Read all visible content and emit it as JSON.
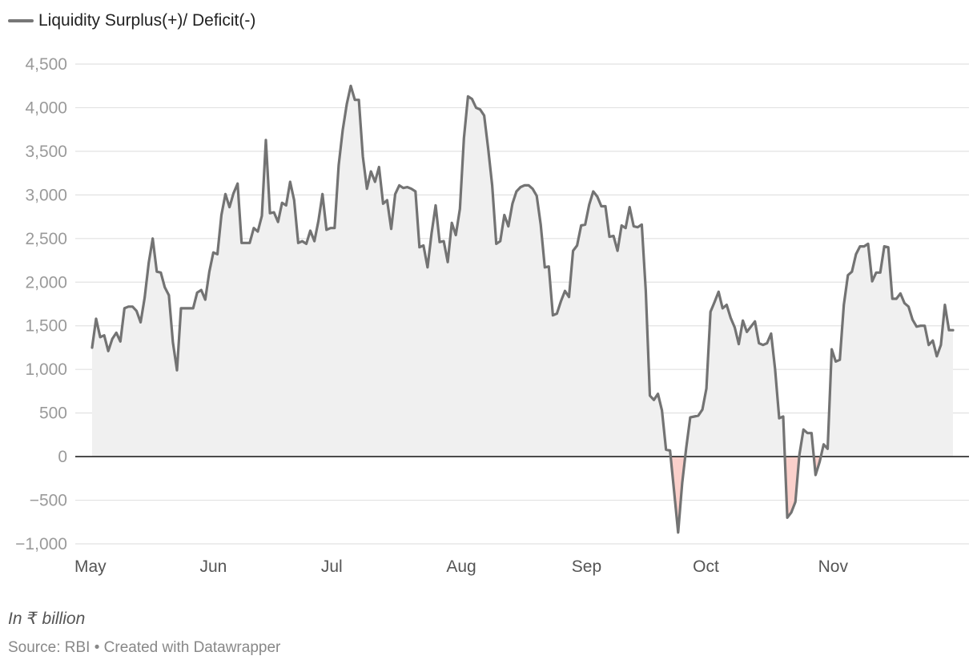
{
  "legend": {
    "label": "Liquidity Surplus(+)/ Deficit(-)",
    "line_color": "#777777"
  },
  "note": "In ₹ billion",
  "source": "Source: RBI • Created with Datawrapper",
  "colors": {
    "surplus_fill": "#f0f0f0",
    "deficit_fill": "#fbd0cb",
    "line": "#737373",
    "zero_line": "#222222",
    "grid": "#e2e2e2"
  },
  "chart_data": {
    "type": "area",
    "title": "",
    "xlabel": "",
    "ylabel": "",
    "ylim": [
      -1000,
      4500
    ],
    "yticks": [
      -1000,
      -500,
      0,
      500,
      1000,
      1500,
      2000,
      2500,
      3000,
      3500,
      4000,
      4500
    ],
    "ytick_labels": [
      "−1,000",
      "−500",
      "0",
      "500",
      "1,000",
      "1,500",
      "2,000",
      "2,500",
      "3,000",
      "3,500",
      "4,000",
      "4,500"
    ],
    "xticks": [
      {
        "label": "May",
        "day": 0
      },
      {
        "label": "Jun",
        "day": 31
      },
      {
        "label": "Jul",
        "day": 61
      },
      {
        "label": "Aug",
        "day": 92
      },
      {
        "label": "Sep",
        "day": 123
      },
      {
        "label": "Oct",
        "day": 153
      },
      {
        "label": "Nov",
        "day": 184
      }
    ],
    "grid": true,
    "series": [
      {
        "name": "Liquidity Surplus(+)/ Deficit(-)",
        "points": [
          [
            0,
            1250
          ],
          [
            1,
            1580
          ],
          [
            2,
            1370
          ],
          [
            3,
            1390
          ],
          [
            4,
            1210
          ],
          [
            5,
            1350
          ],
          [
            6,
            1420
          ],
          [
            7,
            1320
          ],
          [
            8,
            1700
          ],
          [
            9,
            1720
          ],
          [
            10,
            1720
          ],
          [
            11,
            1670
          ],
          [
            12,
            1540
          ],
          [
            13,
            1820
          ],
          [
            14,
            2220
          ],
          [
            15,
            2500
          ],
          [
            16,
            2120
          ],
          [
            17,
            2110
          ],
          [
            18,
            1940
          ],
          [
            19,
            1850
          ],
          [
            20,
            1310
          ],
          [
            21,
            990
          ],
          [
            22,
            1700
          ],
          [
            23,
            1700
          ],
          [
            24,
            1700
          ],
          [
            25,
            1700
          ],
          [
            26,
            1880
          ],
          [
            27,
            1910
          ],
          [
            28,
            1800
          ],
          [
            29,
            2120
          ],
          [
            30,
            2340
          ],
          [
            31,
            2320
          ],
          [
            32,
            2770
          ],
          [
            33,
            3010
          ],
          [
            34,
            2860
          ],
          [
            35,
            3020
          ],
          [
            36,
            3130
          ],
          [
            37,
            2450
          ],
          [
            38,
            2450
          ],
          [
            39,
            2450
          ],
          [
            40,
            2620
          ],
          [
            41,
            2580
          ],
          [
            42,
            2760
          ],
          [
            43,
            3630
          ],
          [
            44,
            2790
          ],
          [
            45,
            2800
          ],
          [
            46,
            2690
          ],
          [
            47,
            2910
          ],
          [
            48,
            2880
          ],
          [
            49,
            3150
          ],
          [
            50,
            2940
          ],
          [
            51,
            2450
          ],
          [
            52,
            2470
          ],
          [
            53,
            2440
          ],
          [
            54,
            2590
          ],
          [
            55,
            2470
          ],
          [
            56,
            2700
          ],
          [
            57,
            3010
          ],
          [
            58,
            2600
          ],
          [
            59,
            2620
          ],
          [
            60,
            2620
          ],
          [
            61,
            3340
          ],
          [
            62,
            3740
          ],
          [
            63,
            4040
          ],
          [
            64,
            4250
          ],
          [
            65,
            4090
          ],
          [
            66,
            4090
          ],
          [
            67,
            3440
          ],
          [
            68,
            3070
          ],
          [
            69,
            3270
          ],
          [
            70,
            3150
          ],
          [
            71,
            3320
          ],
          [
            72,
            2900
          ],
          [
            73,
            2940
          ],
          [
            74,
            2610
          ],
          [
            75,
            3010
          ],
          [
            76,
            3110
          ],
          [
            77,
            3080
          ],
          [
            78,
            3090
          ],
          [
            79,
            3070
          ],
          [
            80,
            3040
          ],
          [
            81,
            2400
          ],
          [
            82,
            2420
          ],
          [
            83,
            2170
          ],
          [
            84,
            2560
          ],
          [
            85,
            2880
          ],
          [
            86,
            2460
          ],
          [
            87,
            2470
          ],
          [
            88,
            2230
          ],
          [
            89,
            2680
          ],
          [
            90,
            2540
          ],
          [
            91,
            2840
          ],
          [
            92,
            3650
          ],
          [
            93,
            4130
          ],
          [
            94,
            4100
          ],
          [
            95,
            4000
          ],
          [
            96,
            3980
          ],
          [
            97,
            3910
          ],
          [
            98,
            3530
          ],
          [
            99,
            3110
          ],
          [
            100,
            2440
          ],
          [
            101,
            2470
          ],
          [
            102,
            2770
          ],
          [
            103,
            2640
          ],
          [
            104,
            2900
          ],
          [
            105,
            3040
          ],
          [
            106,
            3090
          ],
          [
            107,
            3110
          ],
          [
            108,
            3110
          ],
          [
            109,
            3070
          ],
          [
            110,
            2990
          ],
          [
            111,
            2660
          ],
          [
            112,
            2170
          ],
          [
            113,
            2180
          ],
          [
            114,
            1620
          ],
          [
            115,
            1640
          ],
          [
            116,
            1780
          ],
          [
            117,
            1900
          ],
          [
            118,
            1830
          ],
          [
            119,
            2360
          ],
          [
            120,
            2420
          ],
          [
            121,
            2650
          ],
          [
            122,
            2660
          ],
          [
            123,
            2890
          ],
          [
            124,
            3040
          ],
          [
            125,
            2980
          ],
          [
            126,
            2870
          ],
          [
            127,
            2870
          ],
          [
            128,
            2520
          ],
          [
            129,
            2530
          ],
          [
            130,
            2360
          ],
          [
            131,
            2650
          ],
          [
            132,
            2620
          ],
          [
            133,
            2860
          ],
          [
            134,
            2640
          ],
          [
            135,
            2630
          ],
          [
            136,
            2660
          ],
          [
            137,
            1900
          ],
          [
            138,
            700
          ],
          [
            139,
            650
          ],
          [
            140,
            720
          ],
          [
            141,
            530
          ],
          [
            142,
            80
          ],
          [
            143,
            70
          ],
          [
            144,
            -400
          ],
          [
            145,
            -870
          ],
          [
            146,
            -300
          ],
          [
            147,
            100
          ],
          [
            148,
            450
          ],
          [
            149,
            460
          ],
          [
            150,
            470
          ],
          [
            151,
            540
          ],
          [
            152,
            780
          ],
          [
            153,
            1660
          ],
          [
            154,
            1770
          ],
          [
            155,
            1890
          ],
          [
            156,
            1700
          ],
          [
            157,
            1740
          ],
          [
            158,
            1590
          ],
          [
            159,
            1480
          ],
          [
            160,
            1290
          ],
          [
            161,
            1560
          ],
          [
            162,
            1430
          ],
          [
            163,
            1490
          ],
          [
            164,
            1550
          ],
          [
            165,
            1300
          ],
          [
            166,
            1280
          ],
          [
            167,
            1300
          ],
          [
            168,
            1410
          ],
          [
            169,
            1000
          ],
          [
            170,
            440
          ],
          [
            171,
            460
          ],
          [
            172,
            -700
          ],
          [
            173,
            -640
          ],
          [
            174,
            -520
          ],
          [
            175,
            20
          ],
          [
            176,
            310
          ],
          [
            177,
            270
          ],
          [
            178,
            270
          ],
          [
            179,
            -210
          ],
          [
            180,
            -60
          ],
          [
            181,
            140
          ],
          [
            182,
            90
          ],
          [
            183,
            1230
          ],
          [
            184,
            1090
          ],
          [
            185,
            1110
          ],
          [
            186,
            1740
          ],
          [
            187,
            2080
          ],
          [
            188,
            2120
          ],
          [
            189,
            2320
          ],
          [
            190,
            2410
          ],
          [
            191,
            2410
          ],
          [
            192,
            2440
          ],
          [
            193,
            2010
          ],
          [
            194,
            2110
          ],
          [
            195,
            2110
          ],
          [
            196,
            2410
          ],
          [
            197,
            2400
          ],
          [
            198,
            1810
          ],
          [
            199,
            1810
          ],
          [
            200,
            1870
          ],
          [
            201,
            1760
          ],
          [
            202,
            1720
          ],
          [
            203,
            1570
          ],
          [
            204,
            1490
          ],
          [
            205,
            1500
          ],
          [
            206,
            1500
          ],
          [
            207,
            1280
          ],
          [
            208,
            1330
          ],
          [
            209,
            1150
          ],
          [
            210,
            1280
          ],
          [
            211,
            1740
          ],
          [
            212,
            1450
          ],
          [
            213,
            1450
          ]
        ]
      }
    ]
  }
}
